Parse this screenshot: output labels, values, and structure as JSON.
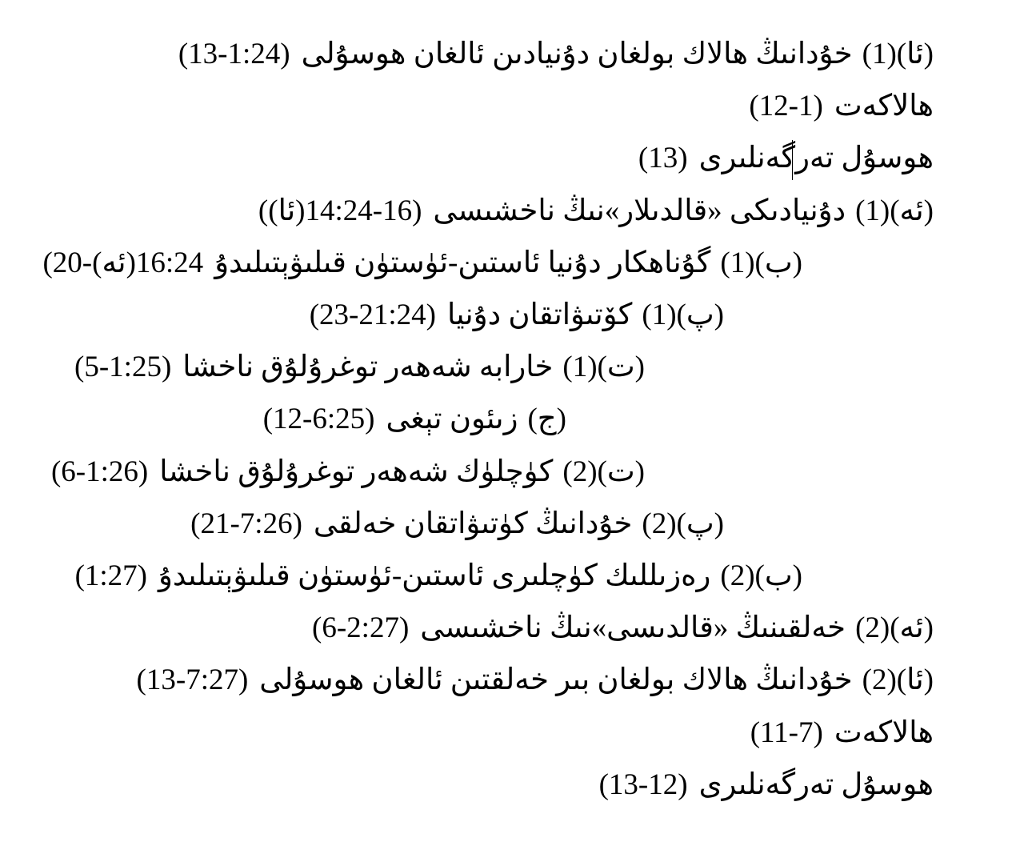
{
  "outline": [
    {
      "label": "(ئا)(1)",
      "title": "خۇدانىڭ ھالاك بولغان دۇنيادىن ئالغان ھوسۇلى",
      "ref": "(13-1:24)"
    },
    {
      "label": "",
      "title": "ھالاكەت",
      "ref": "(12-1)"
    },
    {
      "label": "",
      "title": "ھوسۇل تەرگەنلىرى",
      "ref": "(13)"
    },
    {
      "label": "(ئە)(1)",
      "title": "دۇنيادىكى «قالدىلار»نىڭ ناخشىسى",
      "ref": "((ئا)16-14:24)"
    },
    {
      "label": "(ب)(1)",
      "title": "گۇناھكار دۇنيا ئاستىن-ئۈستۈن قىلىۋېتىلىدۇ",
      "ref": "(20-(ئە)16:24"
    },
    {
      "label": "(پ)(1)",
      "title": "كۆتىۋاتقان دۇنيا",
      "ref": "(23-21:24)"
    },
    {
      "label": "(ت)(1)",
      "title": "خارابە شەھەر توغرۇلۇق ناخشا",
      "ref": "(5-1:25)"
    },
    {
      "label": "(ج)",
      "title": "زىئون تېغى",
      "ref": "(12-6:25)"
    },
    {
      "label": "(ت)(2)",
      "title": "كۈچلۈك شەھەر توغرۇلۇق ناخشا",
      "ref": "(6-1:26)"
    },
    {
      "label": "(پ)(2)",
      "title": "خۇدانىڭ كۈتىۋاتقان خەلقى",
      "ref": "(21-7:26)"
    },
    {
      "label": "(ب)(2)",
      "title": "رەزىللىك كۈچلىرى ئاستىن-ئۈستۈن قىلىۋېتىلىدۇ",
      "ref": "(1:27)"
    },
    {
      "label": "(ئە)(2)",
      "title": "خەلقىنىڭ «قالدىسى»نىڭ ناخشىسى",
      "ref": "(6-2:27)"
    },
    {
      "label": "(ئا)(2)",
      "title": "خۇدانىڭ ھالاك بولغان بىر خەلقتىن ئالغان ھوسۇلى",
      "ref": "(13-7:27)"
    },
    {
      "label": "",
      "title": "ھالاكەت",
      "ref": "(11-7)"
    },
    {
      "label": "",
      "title": "ھوسۇل تەرگەنلىرى",
      "ref": "(13-12)"
    }
  ]
}
